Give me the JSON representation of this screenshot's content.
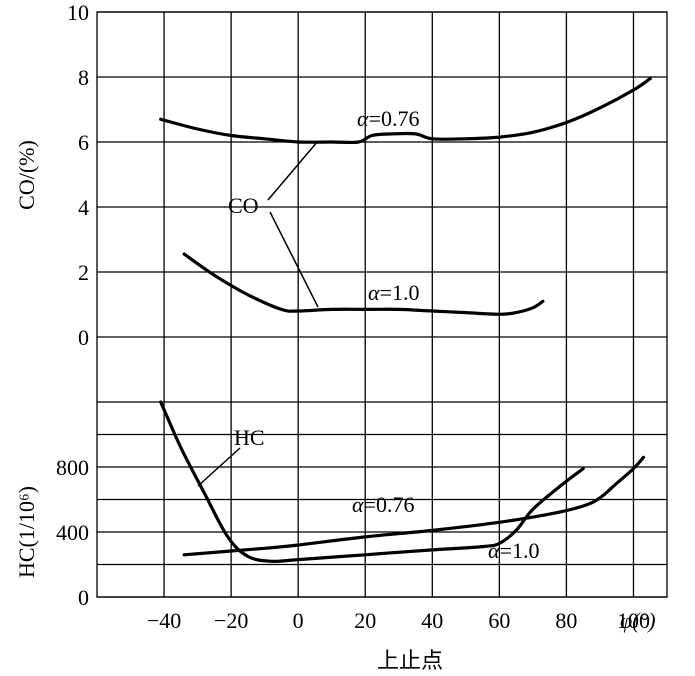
{
  "chart_data": [
    {
      "type": "line",
      "panel": "CO",
      "ylabel": "CO/(%)",
      "ylim": [
        0,
        10
      ],
      "yticks": [
        0,
        2,
        4,
        6,
        8,
        10
      ],
      "grid": true,
      "annotation": "CO",
      "series": [
        {
          "name": "α=0.76",
          "x": [
            -41,
            -30,
            -20,
            -10,
            0,
            10,
            18,
            22,
            28,
            35,
            40,
            50,
            60,
            70,
            80,
            90,
            100,
            105
          ],
          "y": [
            6.7,
            6.4,
            6.2,
            6.1,
            6.0,
            6.0,
            6.0,
            6.2,
            6.25,
            6.25,
            6.1,
            6.1,
            6.15,
            6.3,
            6.6,
            7.05,
            7.6,
            7.95
          ]
        },
        {
          "name": "α=1.0",
          "x": [
            -34,
            -25,
            -15,
            -5,
            0,
            10,
            20,
            30,
            40,
            50,
            60,
            65,
            70,
            73
          ],
          "y": [
            2.55,
            1.9,
            1.3,
            0.85,
            0.8,
            0.85,
            0.85,
            0.85,
            0.8,
            0.75,
            0.7,
            0.75,
            0.9,
            1.1
          ]
        }
      ]
    },
    {
      "type": "line",
      "panel": "HC",
      "ylabel": "HC(1/10⁶)",
      "ylim": [
        0,
        1200
      ],
      "yticks": [
        0,
        400,
        800
      ],
      "xlabel": "上止点",
      "xunit": "φ(°)",
      "xlim": [
        -60,
        110
      ],
      "xticks": [
        -40,
        -20,
        0,
        20,
        40,
        60,
        80,
        100
      ],
      "grid": true,
      "annotation": "HC",
      "series": [
        {
          "name": "α=0.76",
          "x": [
            -34,
            -10,
            0,
            20,
            40,
            60,
            75,
            85,
            90,
            95,
            100,
            103
          ],
          "y": [
            260,
            300,
            320,
            370,
            410,
            460,
            510,
            560,
            610,
            700,
            790,
            860
          ]
        },
        {
          "name": "α=1.0",
          "x": [
            -41,
            -35,
            -28,
            -21,
            -15,
            -8,
            0,
            20,
            40,
            55,
            60,
            65,
            70,
            78,
            85
          ],
          "y": [
            1200,
            920,
            640,
            370,
            250,
            220,
            230,
            260,
            290,
            310,
            330,
            410,
            540,
            680,
            790
          ]
        }
      ]
    }
  ]
}
